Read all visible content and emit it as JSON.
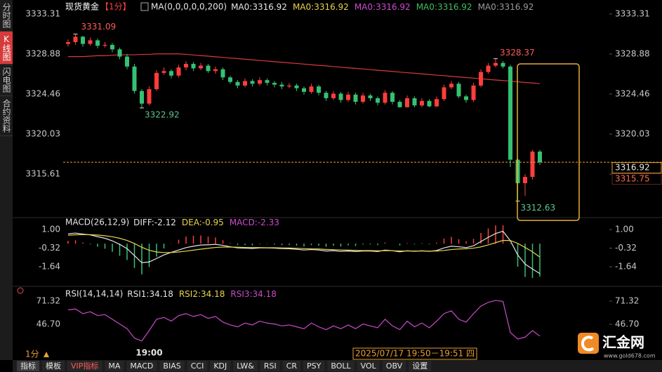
{
  "sidebar": [
    "分时图",
    "K线图",
    "闪电图",
    "合约资料"
  ],
  "chart_data": [
    {
      "type": "candlestick",
      "title": "现货黄金",
      "period": "【1分】",
      "subtitle": "MA(0,0,0,0,0,200)",
      "ma_labels": [
        {
          "label": "MA0:3316.92",
          "color": "#e6e6e6"
        },
        {
          "label": "MA0:3316.92",
          "color": "#e8d44d"
        },
        {
          "label": "MA0:3316.92",
          "color": "#d04ad0"
        },
        {
          "label": "MA0:3316.92",
          "color": "#3fbf5f"
        },
        {
          "label": "MA0:3316.92",
          "color": "#9a9a9a"
        }
      ],
      "categories": [
        null,
        null,
        null,
        null,
        null,
        null,
        null,
        null,
        null,
        null,
        null,
        "19:00",
        null,
        null,
        null,
        null,
        null,
        null,
        null,
        null,
        null,
        null,
        null,
        null,
        null,
        null,
        null,
        null,
        null,
        null,
        null,
        null,
        null,
        null,
        null,
        null,
        null,
        null,
        null,
        null,
        null,
        null,
        null,
        null,
        null,
        null,
        null,
        null,
        null,
        null,
        null,
        null,
        null,
        null,
        null,
        null,
        null,
        null,
        null,
        null,
        null,
        null,
        null,
        null,
        null
      ],
      "open": [
        3330.0,
        3330.2,
        3330.8,
        3330.0,
        3330.4,
        3329.8,
        3329.9,
        3329.4,
        3328.6,
        3327.5,
        3324.8,
        3323.4,
        3325.0,
        3326.8,
        3327.0,
        3326.5,
        3327.4,
        3327.8,
        3327.3,
        3327.6,
        3327.0,
        3327.2,
        3326.3,
        3325.8,
        3325.4,
        3325.9,
        3325.6,
        3326.0,
        3325.7,
        3325.5,
        3325.3,
        3325.4,
        3325.1,
        3324.7,
        3325.3,
        3324.6,
        3324.0,
        3324.5,
        3323.8,
        3324.4,
        3323.6,
        3324.3,
        3324.0,
        3323.5,
        3324.6,
        3323.6,
        3323.0,
        3324.0,
        3323.2,
        3323.7,
        3323.1,
        3323.9,
        3325.2,
        3325.6,
        3324.2,
        3323.8,
        3325.4,
        3326.9,
        3327.6,
        3327.9,
        3327.5,
        3317.2,
        3314.6,
        3315.3,
        3318.1
      ],
      "high": [
        3330.5,
        3331.09,
        3330.9,
        3330.7,
        3330.6,
        3330.2,
        3330.1,
        3329.6,
        3328.9,
        3327.8,
        3325.0,
        3325.3,
        3327.1,
        3327.4,
        3327.2,
        3327.7,
        3328.1,
        3328.0,
        3327.9,
        3327.8,
        3327.5,
        3327.4,
        3326.5,
        3326.0,
        3326.2,
        3326.1,
        3326.3,
        3326.2,
        3325.9,
        3325.8,
        3325.7,
        3325.6,
        3325.3,
        3325.6,
        3325.5,
        3324.8,
        3324.8,
        3324.7,
        3324.7,
        3324.6,
        3324.6,
        3324.5,
        3324.2,
        3324.9,
        3324.8,
        3323.8,
        3324.3,
        3324.2,
        3324.0,
        3323.9,
        3324.2,
        3325.5,
        3325.9,
        3325.8,
        3324.4,
        3325.7,
        3327.2,
        3327.9,
        3328.37,
        3328.1,
        3327.7,
        3317.4,
        3315.6,
        3318.3,
        3318.3
      ],
      "low": [
        3329.7,
        3329.9,
        3329.7,
        3329.8,
        3329.5,
        3329.6,
        3329.1,
        3328.3,
        3327.2,
        3324.5,
        3322.92,
        3323.2,
        3324.8,
        3326.6,
        3326.2,
        3326.3,
        3327.1,
        3327.0,
        3327.1,
        3326.8,
        3326.7,
        3326.0,
        3325.6,
        3325.1,
        3325.2,
        3325.3,
        3325.4,
        3325.4,
        3325.2,
        3325.0,
        3325.1,
        3324.8,
        3324.4,
        3324.5,
        3324.3,
        3323.7,
        3323.8,
        3323.5,
        3323.6,
        3323.3,
        3323.4,
        3323.7,
        3323.2,
        3323.3,
        3323.3,
        3322.97,
        3322.98,
        3323.0,
        3323.0,
        3323.0,
        3323.0,
        3323.7,
        3325.0,
        3324.0,
        3323.5,
        3323.6,
        3325.2,
        3326.7,
        3327.4,
        3327.3,
        3316.4,
        3312.63,
        3313.2,
        3315.0,
        3316.6
      ],
      "close": [
        3330.2,
        3330.8,
        3330.0,
        3330.4,
        3329.8,
        3329.9,
        3329.4,
        3328.6,
        3327.5,
        3324.8,
        3323.4,
        3325.0,
        3326.8,
        3327.0,
        3326.5,
        3327.4,
        3327.8,
        3327.3,
        3327.6,
        3327.0,
        3327.2,
        3326.3,
        3325.8,
        3325.4,
        3325.9,
        3325.6,
        3326.0,
        3325.7,
        3325.5,
        3325.3,
        3325.4,
        3325.1,
        3324.7,
        3325.3,
        3324.6,
        3324.0,
        3324.5,
        3323.8,
        3324.4,
        3323.6,
        3324.3,
        3324.0,
        3323.5,
        3324.6,
        3323.6,
        3323.0,
        3324.0,
        3323.2,
        3323.7,
        3323.1,
        3323.9,
        3325.2,
        3325.6,
        3324.2,
        3323.8,
        3325.4,
        3326.9,
        3327.6,
        3327.9,
        3327.5,
        3317.2,
        3314.6,
        3315.3,
        3318.1,
        3316.92
      ],
      "up_color": "#ff3d3d",
      "down_color": "#35c172",
      "ma": {
        "color": "#d83a3a",
        "values": [
          3328.6,
          3328.6,
          3328.6,
          3328.65,
          3328.7,
          3328.7,
          3328.75,
          3328.8,
          3328.8,
          3328.8,
          3328.85,
          3328.85,
          3328.9,
          3328.9,
          3328.9,
          3328.9,
          3328.85,
          3328.78,
          3328.71,
          3328.65,
          3328.58,
          3328.51,
          3328.44,
          3328.38,
          3328.31,
          3328.24,
          3328.17,
          3328.11,
          3328.04,
          3327.97,
          3327.9,
          3327.84,
          3327.77,
          3327.7,
          3327.63,
          3327.57,
          3327.5,
          3327.43,
          3327.36,
          3327.3,
          3327.23,
          3327.16,
          3327.09,
          3327.03,
          3326.96,
          3326.89,
          3326.82,
          3326.76,
          3326.69,
          3326.62,
          3326.55,
          3326.49,
          3326.42,
          3326.35,
          3326.28,
          3326.22,
          3326.15,
          3326.08,
          3326.01,
          3325.95,
          3325.88,
          3325.81,
          3325.74,
          3325.68,
          3325.61
        ]
      },
      "price_tags": [
        3316.92,
        3315.75
      ],
      "ylim": [
        3310.8,
        3334.47
      ],
      "yticks": [
        3333.31,
        3328.88,
        3324.46,
        3320.03,
        3315.61
      ]
    },
    {
      "type": "macd",
      "title": "MACD(26,12,9)",
      "series": [
        {
          "label": "DIFF:-2.12",
          "color": "#e6e6e6",
          "values": [
            0.7,
            0.75,
            0.68,
            0.62,
            0.5,
            0.38,
            0.2,
            -0.05,
            -0.35,
            -0.85,
            -1.35,
            -1.3,
            -1.05,
            -0.8,
            -0.62,
            -0.45,
            -0.28,
            -0.18,
            -0.1,
            -0.08,
            -0.05,
            -0.12,
            -0.22,
            -0.3,
            -0.32,
            -0.34,
            -0.3,
            -0.3,
            -0.32,
            -0.35,
            -0.36,
            -0.4,
            -0.45,
            -0.42,
            -0.45,
            -0.52,
            -0.5,
            -0.55,
            -0.52,
            -0.56,
            -0.52,
            -0.52,
            -0.56,
            -0.46,
            -0.5,
            -0.58,
            -0.5,
            -0.54,
            -0.5,
            -0.55,
            -0.48,
            -0.3,
            -0.18,
            -0.22,
            -0.28,
            -0.15,
            0.15,
            0.45,
            0.72,
            0.88,
            0.2,
            -0.8,
            -1.45,
            -1.8,
            -2.12
          ]
        },
        {
          "label": "DEA:-0.95",
          "color": "#e8d44d",
          "values": [
            0.6,
            0.63,
            0.64,
            0.64,
            0.61,
            0.56,
            0.49,
            0.38,
            0.23,
            0.01,
            -0.26,
            -0.47,
            -0.59,
            -0.63,
            -0.63,
            -0.59,
            -0.53,
            -0.46,
            -0.39,
            -0.33,
            -0.27,
            -0.24,
            -0.24,
            -0.25,
            -0.27,
            -0.28,
            -0.28,
            -0.29,
            -0.29,
            -0.3,
            -0.31,
            -0.33,
            -0.35,
            -0.37,
            -0.38,
            -0.41,
            -0.43,
            -0.45,
            -0.46,
            -0.48,
            -0.49,
            -0.49,
            -0.51,
            -0.5,
            -0.5,
            -0.52,
            -0.52,
            -0.52,
            -0.52,
            -0.53,
            -0.52,
            -0.48,
            -0.42,
            -0.38,
            -0.36,
            -0.32,
            -0.23,
            -0.09,
            0.07,
            0.23,
            0.22,
            0.02,
            -0.27,
            -0.58,
            -0.95
          ]
        }
      ],
      "histogram": {
        "label": "MACD:-2.33",
        "color": "#d04ad0",
        "up_color": "#ff3d3d",
        "down_color": "#35c172",
        "values": [
          0.2,
          0.24,
          0.08,
          -0.04,
          -0.22,
          -0.36,
          -0.58,
          -0.86,
          -1.16,
          -1.72,
          -2.18,
          -1.66,
          -0.92,
          -0.34,
          0.02,
          0.28,
          0.5,
          0.56,
          0.58,
          0.5,
          0.44,
          0.24,
          0.04,
          -0.1,
          -0.1,
          -0.12,
          -0.04,
          -0.02,
          -0.06,
          -0.1,
          -0.1,
          -0.14,
          -0.2,
          -0.1,
          -0.14,
          -0.22,
          -0.14,
          -0.2,
          -0.12,
          -0.16,
          -0.06,
          -0.06,
          -0.1,
          0.08,
          0,
          -0.12,
          0.04,
          -0.04,
          0.04,
          -0.04,
          0.08,
          0.36,
          0.48,
          0.32,
          0.16,
          0.34,
          0.76,
          1.08,
          1.3,
          1.3,
          -0.04,
          -1.64,
          -2.36,
          -2.44,
          -2.33
        ]
      },
      "ylim": [
        -3.03,
        1.75
      ],
      "yticks": [
        {
          "value": 1,
          "label": "1.00"
        },
        -0.32,
        -1.64
      ]
    },
    {
      "type": "rsi",
      "title": "RSI(14,14,14)",
      "series": [
        {
          "label": "RSI1:34.18",
          "color": "#e6e6e6"
        },
        {
          "label": "RSI2:34.18",
          "color": "#e8d44d"
        },
        {
          "label": "RSI3:34.18",
          "color": "#c94bc9",
          "values": [
            62,
            63,
            58,
            60,
            56,
            57,
            52,
            47,
            42,
            32,
            29,
            40,
            52,
            54,
            50,
            56,
            58,
            55,
            57,
            53,
            55,
            49,
            46,
            44,
            48,
            46,
            50,
            48,
            47,
            45,
            46,
            44,
            42,
            48,
            44,
            41,
            45,
            42,
            46,
            42,
            47,
            45,
            43,
            52,
            45,
            41,
            50,
            44,
            48,
            43,
            50,
            58,
            61,
            52,
            49,
            58,
            66,
            70,
            72,
            71,
            38,
            31,
            33,
            40,
            34.18
          ]
        }
      ],
      "ylim": [
        22.1,
        84.0
      ],
      "yticks": [
        71.32,
        {
          "value": 46.7,
          "label": "46.70"
        }
      ]
    }
  ],
  "footer": {
    "period": "1分",
    "crosshair_time": "2025/07/17 19:50－19:51 四"
  },
  "toolbar": [
    "指标",
    "模板",
    "VIP指标",
    "MA",
    "MACD",
    "BIAS",
    "CCI",
    "KDJ",
    "LW&",
    "RSI",
    "CR",
    "PSY",
    "BOLL",
    "VOL",
    "OBV",
    "设置"
  ],
  "logo": {
    "name": "汇金网",
    "url": "www.gold678.com"
  }
}
